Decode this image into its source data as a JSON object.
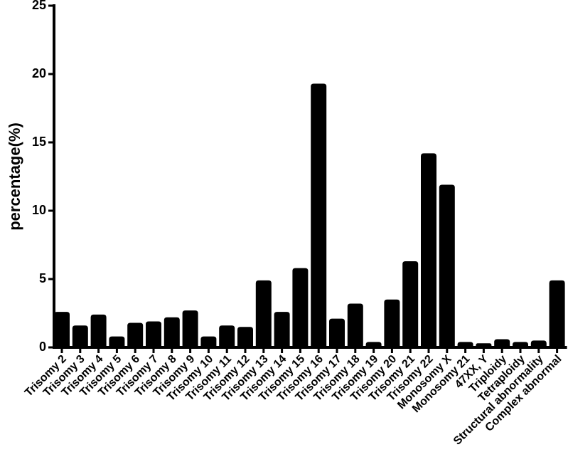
{
  "chart_data": {
    "type": "bar",
    "title": "",
    "xlabel": "",
    "ylabel": "percentage(%)",
    "ylim": [
      0,
      25
    ],
    "yticks": [
      0,
      5,
      10,
      15,
      20,
      25
    ],
    "grid": false,
    "bar_color": "#000000",
    "categories": [
      "Trisomy 2",
      "Trisomy 3",
      "Trisomy 4",
      "Trisomy 5",
      "Trisomy 6",
      "Trisomy 7",
      "Trisomy 8",
      "Trisomy 9",
      "Trisomy 10",
      "Trisomy 11",
      "Trisomy 12",
      "Trisomy 13",
      "Trisomy 14",
      "Trisomy 15",
      "Trisomy 16",
      "Trisomy 17",
      "Trisomy 18",
      "Trisomy 19",
      "Trisomy 20",
      "Trisomy 21",
      "Trisomy 22",
      "Monosomy X",
      "Monosomy 21",
      "47XX, Y",
      "Triploidy",
      "Tetraploidy",
      "Structural abnormality",
      "Complex abnormal"
    ],
    "values": [
      2.6,
      1.6,
      2.4,
      0.8,
      1.8,
      1.9,
      2.2,
      2.7,
      0.8,
      1.6,
      1.5,
      4.9,
      2.6,
      5.8,
      19.3,
      2.1,
      3.2,
      0.4,
      3.5,
      6.3,
      14.2,
      11.9,
      0.4,
      0.3,
      0.6,
      0.4,
      0.5,
      4.9
    ]
  }
}
